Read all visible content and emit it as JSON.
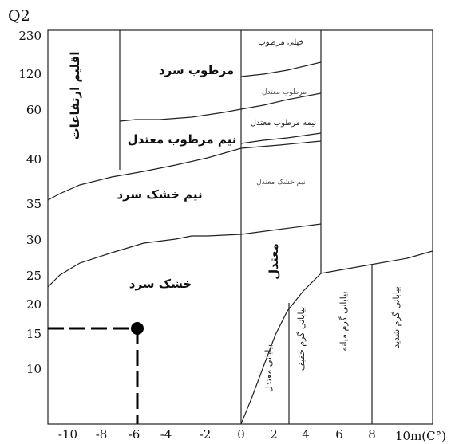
{
  "chart_data": {
    "type": "diagram",
    "title": "",
    "xlabel": "10m(C°)",
    "ylabel": "Q2",
    "x_ticks": [
      "-10",
      "-8",
      "-6",
      "-4",
      "-2",
      "0",
      "2",
      "4",
      "6",
      "8"
    ],
    "y_ticks": [
      "230",
      "120",
      "60",
      "40",
      "35",
      "30",
      "25",
      "20",
      "15",
      "10"
    ],
    "marked_point": {
      "x": -6,
      "y": 15
    },
    "zones": [
      {
        "key": "highlands",
        "label": "اقلیم ارتفاعات"
      },
      {
        "key": "humid_cold",
        "label": "مرطوب سرد"
      },
      {
        "key": "very_humid",
        "label": "خیلی مرطوب"
      },
      {
        "key": "humid_temperate",
        "label": "مرطوب معتدل"
      },
      {
        "key": "semi_humid_temperate_big",
        "label": "نیم مرطوب معتدل"
      },
      {
        "key": "semi_humid_temperate_small",
        "label": "نیمه مرطوب معتدل"
      },
      {
        "key": "semi_arid_temperate",
        "label": "نیم خشک معتدل"
      },
      {
        "key": "semi_arid_cold",
        "label": "نیم خشک سرد"
      },
      {
        "key": "arid_cold",
        "label": "خشک سرد"
      },
      {
        "key": "temperate",
        "label": "معتدل"
      },
      {
        "key": "desert_temperate",
        "label": "بیابانی معتدل"
      },
      {
        "key": "desert_mild_warm",
        "label": "بیابانی گرم خفیف"
      },
      {
        "key": "desert_warm_moderate",
        "label": "بیابانی گرم میانه"
      },
      {
        "key": "desert_warm_severe",
        "label": "بیابانی گرم شدید"
      }
    ]
  }
}
